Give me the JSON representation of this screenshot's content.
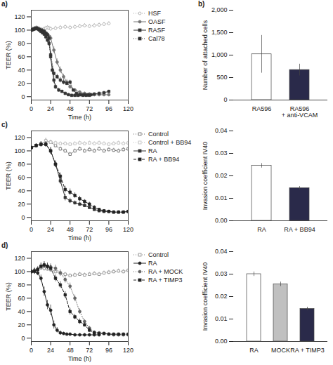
{
  "chart_data": [
    {
      "type": "line",
      "title": "a)",
      "xlabel": "Time (h)",
      "ylabel": "TEER (%)",
      "xlim": [
        0,
        120
      ],
      "ylim": [
        -5,
        130
      ],
      "xticks": [
        0,
        24,
        48,
        72,
        96,
        120
      ],
      "yticks": [
        0,
        20,
        40,
        60,
        80,
        100,
        120
      ],
      "grid": false,
      "legend": "upper right",
      "series": [
        {
          "name": "HSF",
          "color": "#aaaaaa",
          "marker": "open_circle",
          "line_style": "dotted",
          "x": [
            0,
            2,
            4,
            6,
            8,
            10,
            12,
            14,
            16,
            18,
            20,
            22,
            24,
            30,
            36,
            42,
            48,
            54,
            60,
            66,
            72,
            78,
            84,
            90,
            96
          ],
          "values": [
            100,
            101,
            102,
            103,
            103,
            102,
            101,
            100,
            102,
            103,
            104,
            103,
            102,
            103,
            104,
            105,
            104,
            105,
            106,
            107,
            106,
            107,
            108,
            109,
            110
          ],
          "errors": [
            3,
            3,
            3,
            3,
            3,
            3,
            3,
            3,
            3,
            3,
            3,
            3,
            3,
            3,
            3,
            3,
            3,
            3,
            3,
            3,
            3,
            3,
            3,
            3,
            3
          ]
        },
        {
          "name": "OASF",
          "color": "#777777",
          "marker": "circle",
          "line_style": "solid",
          "x": [
            0,
            2,
            4,
            6,
            8,
            10,
            12,
            14,
            16,
            18,
            20,
            22,
            24,
            28,
            32,
            36,
            40,
            44,
            48,
            54,
            60,
            66,
            72,
            78,
            84,
            90,
            96
          ],
          "values": [
            100,
            101,
            102,
            103,
            102,
            101,
            100,
            99,
            98,
            96,
            94,
            91,
            88,
            70,
            52,
            40,
            30,
            22,
            15,
            10,
            7,
            5,
            4,
            3,
            3,
            3,
            3
          ],
          "errors": [
            3,
            3,
            3,
            3,
            3,
            3,
            3,
            3,
            3,
            3,
            3,
            3,
            4,
            5,
            5,
            5,
            4,
            4,
            3,
            2,
            2,
            2,
            2,
            2,
            2,
            2,
            2
          ]
        },
        {
          "name": "RASF",
          "color": "#333333",
          "marker": "square",
          "line_style": "solid",
          "x": [
            0,
            2,
            4,
            6,
            8,
            10,
            12,
            14,
            16,
            18,
            20,
            22,
            24,
            26,
            28,
            30,
            34,
            38,
            42,
            46,
            50,
            54,
            58,
            62,
            66,
            70,
            74,
            78,
            84,
            90,
            96
          ],
          "values": [
            100,
            101,
            102,
            103,
            102,
            101,
            100,
            99,
            98,
            95,
            93,
            88,
            60,
            40,
            25,
            15,
            10,
            8,
            5,
            3,
            2,
            2,
            2,
            3,
            3,
            3,
            3,
            4,
            5,
            6,
            8
          ],
          "errors": [
            3,
            3,
            3,
            3,
            3,
            3,
            3,
            3,
            3,
            3,
            3,
            3,
            6,
            6,
            5,
            4,
            3,
            2,
            2,
            2,
            2,
            2,
            2,
            2,
            2,
            2,
            2,
            2,
            2,
            2,
            2
          ]
        },
        {
          "name": "Cal78",
          "color": "#333333",
          "marker": "square",
          "line_style": "dotted",
          "x": [
            0,
            2,
            4,
            6,
            8,
            10,
            12,
            14,
            16,
            18,
            20,
            22,
            24,
            28,
            32,
            36,
            40,
            44,
            48,
            52,
            56,
            60,
            64,
            68,
            72
          ],
          "values": [
            100,
            101,
            102,
            103,
            102,
            100,
            98,
            96,
            94,
            90,
            85,
            80,
            63,
            35,
            30,
            25,
            22,
            20,
            22,
            10,
            5,
            3,
            2,
            2,
            2
          ],
          "errors": [
            3,
            3,
            3,
            3,
            3,
            3,
            3,
            3,
            3,
            4,
            4,
            4,
            6,
            5,
            4,
            4,
            4,
            3,
            3,
            2,
            2,
            2,
            2,
            2,
            2
          ]
        }
      ]
    },
    {
      "type": "bar",
      "title": "b)",
      "ylabel": "Number of attached cells",
      "ylim": [
        0,
        2000
      ],
      "yticks": [
        0,
        500,
        {
          "value": 1000,
          "label": "1,000"
        },
        {
          "value": 1500,
          "label": "1,500"
        },
        {
          "value": 2000,
          "label": "2,000"
        }
      ],
      "grid": false,
      "categories": [
        "RA596",
        "RA596\n+ anti-VCAM"
      ],
      "values": [
        1020,
        670
      ],
      "errors": [
        420,
        130
      ],
      "colors": [
        "#ffffff",
        "#2a2a4a"
      ]
    },
    {
      "type": "line",
      "title": "c)",
      "xlabel": "Time (h)",
      "ylabel": "TEER (%)",
      "xlim": [
        0,
        120
      ],
      "ylim": [
        -5,
        130
      ],
      "xticks": [
        0,
        24,
        48,
        72,
        96,
        120
      ],
      "yticks": [
        0,
        20,
        40,
        60,
        80,
        100,
        120
      ],
      "grid": false,
      "legend": "upper right",
      "series": [
        {
          "name": "Control",
          "color": "#666666",
          "marker": "open_square",
          "line_style": "dotted",
          "x": [
            0,
            6,
            12,
            18,
            24,
            30,
            36,
            42,
            48,
            54,
            60,
            66,
            72,
            78,
            84,
            90,
            96,
            102,
            108,
            114,
            120
          ],
          "values": [
            105,
            108,
            110,
            115,
            113,
            108,
            103,
            100,
            95,
            100,
            103,
            100,
            102,
            100,
            103,
            100,
            102,
            101,
            100,
            102,
            103
          ],
          "errors": [
            3,
            3,
            3,
            4,
            3,
            3,
            3,
            3,
            3,
            3,
            3,
            3,
            3,
            3,
            3,
            3,
            3,
            3,
            3,
            3,
            3
          ]
        },
        {
          "name": "Control + BB94",
          "color": "#bbbbbb",
          "marker": "open_square",
          "line_style": "dotted",
          "x": [
            0,
            6,
            12,
            18,
            24,
            30,
            36,
            42,
            48,
            54,
            60,
            66,
            72,
            78,
            84,
            90,
            96,
            102,
            108,
            114,
            120
          ],
          "values": [
            105,
            108,
            110,
            115,
            113,
            112,
            111,
            111,
            110,
            111,
            112,
            111,
            112,
            111,
            112,
            111,
            110,
            111,
            112,
            111,
            112
          ],
          "errors": [
            3,
            3,
            3,
            3,
            3,
            3,
            3,
            3,
            3,
            3,
            3,
            3,
            3,
            3,
            3,
            3,
            3,
            3,
            3,
            3,
            3
          ]
        },
        {
          "name": "RA",
          "color": "#333333",
          "marker": "square",
          "line_style": "solid",
          "x": [
            0,
            6,
            12,
            18,
            24,
            30,
            36,
            42,
            48,
            54,
            60,
            66,
            72,
            78,
            84,
            90,
            96,
            102,
            108,
            114,
            120
          ],
          "values": [
            105,
            108,
            110,
            110,
            100,
            80,
            55,
            30,
            25,
            22,
            20,
            18,
            15,
            12,
            10,
            9,
            9,
            8,
            8,
            8,
            9
          ],
          "errors": [
            3,
            3,
            4,
            4,
            5,
            5,
            5,
            5,
            4,
            3,
            3,
            3,
            2,
            2,
            2,
            2,
            2,
            2,
            2,
            2,
            2
          ]
        },
        {
          "name": "RA + BB94",
          "color": "#222222",
          "marker": "square",
          "line_style": "dashed",
          "x": [
            0,
            6,
            12,
            18,
            24,
            30,
            36,
            42,
            48,
            54,
            60,
            66,
            72,
            78,
            84,
            90,
            96,
            102,
            108,
            114,
            120
          ],
          "values": [
            105,
            108,
            110,
            110,
            100,
            80,
            62,
            42,
            38,
            33,
            28,
            24,
            20,
            15,
            12,
            10,
            9,
            8,
            8,
            8,
            9
          ],
          "errors": [
            3,
            3,
            4,
            4,
            5,
            5,
            5,
            5,
            5,
            4,
            4,
            3,
            3,
            3,
            2,
            2,
            2,
            2,
            2,
            2,
            2
          ]
        }
      ]
    },
    {
      "type": "bar",
      "ylabel": "Invasion coefficient IV40",
      "ylim": [
        0,
        0.04
      ],
      "yticks": [
        {
          "value": 0,
          "label": "0.00"
        },
        0.01,
        0.02,
        0.03,
        0.04
      ],
      "grid": false,
      "categories": [
        "RA",
        "RA + BB94"
      ],
      "values": [
        0.0245,
        0.0145
      ],
      "errors": [
        0.001,
        0.0008
      ],
      "colors": [
        "#ffffff",
        "#2a2a4a"
      ]
    },
    {
      "type": "line",
      "title": "d)",
      "xlabel": "Time (h)",
      "ylabel": "TEER (%)",
      "xlim": [
        0,
        120
      ],
      "ylim": [
        -5,
        130
      ],
      "xticks": [
        0,
        24,
        48,
        72,
        96,
        120
      ],
      "yticks": [
        0,
        20,
        40,
        60,
        80,
        100,
        120
      ],
      "grid": false,
      "legend": "upper right",
      "series": [
        {
          "name": "Control",
          "color": "#888888",
          "marker": "open_square",
          "line_style": "dotted",
          "x": [
            0,
            4,
            8,
            12,
            16,
            20,
            24,
            30,
            36,
            42,
            48,
            54,
            60,
            66,
            72,
            78,
            84,
            90,
            96,
            102,
            108,
            114,
            120
          ],
          "values": [
            100,
            102,
            104,
            106,
            105,
            104,
            103,
            100,
            98,
            96,
            94,
            95,
            96,
            95,
            96,
            97,
            96,
            98,
            99,
            100,
            101,
            100,
            102
          ],
          "errors": [
            4,
            4,
            4,
            4,
            4,
            3,
            3,
            3,
            3,
            3,
            3,
            3,
            3,
            3,
            3,
            3,
            3,
            3,
            3,
            3,
            3,
            3,
            3
          ]
        },
        {
          "name": "RA",
          "color": "#222222",
          "marker": "circle",
          "line_style": "solid",
          "x": [
            0,
            4,
            8,
            12,
            16,
            20,
            24,
            28,
            32,
            36,
            40,
            44,
            48,
            54,
            60,
            66,
            72,
            78,
            84
          ],
          "values": [
            100,
            100,
            98,
            90,
            70,
            50,
            42,
            20,
            12,
            8,
            7,
            6,
            6,
            5,
            5,
            5,
            5,
            5,
            5
          ],
          "errors": [
            4,
            4,
            4,
            5,
            7,
            7,
            8,
            6,
            4,
            3,
            2,
            2,
            2,
            2,
            2,
            2,
            2,
            2,
            2
          ]
        },
        {
          "name": "RA + MOCK",
          "color": "#666666",
          "marker": "circle",
          "line_style": "dotted",
          "x": [
            0,
            4,
            8,
            12,
            16,
            20,
            24,
            30,
            36,
            42,
            48,
            54,
            60,
            66,
            72,
            78,
            84,
            90,
            96,
            102,
            108,
            114,
            120
          ],
          "values": [
            100,
            101,
            103,
            108,
            110,
            108,
            107,
            105,
            98,
            88,
            78,
            60,
            40,
            25,
            15,
            9,
            8,
            7,
            6,
            5,
            5,
            5,
            5
          ],
          "errors": [
            4,
            4,
            4,
            5,
            5,
            5,
            5,
            5,
            5,
            5,
            5,
            5,
            4,
            3,
            3,
            2,
            2,
            2,
            2,
            2,
            2,
            2,
            2
          ]
        },
        {
          "name": "RA + TIMP3",
          "color": "#222222",
          "marker": "square",
          "line_style": "dashed",
          "x": [
            0,
            4,
            8,
            12,
            16,
            20,
            24,
            30,
            36,
            42,
            48,
            54,
            60,
            66,
            72,
            78,
            84,
            90,
            96,
            102,
            108,
            114,
            120
          ],
          "values": [
            100,
            101,
            103,
            108,
            110,
            108,
            105,
            90,
            80,
            65,
            40,
            32,
            25,
            20,
            12,
            8,
            7,
            7,
            6,
            6,
            6,
            6,
            6
          ],
          "errors": [
            4,
            4,
            4,
            5,
            5,
            5,
            5,
            5,
            5,
            5,
            5,
            4,
            4,
            3,
            3,
            2,
            2,
            2,
            2,
            2,
            2,
            2,
            2
          ]
        }
      ]
    },
    {
      "type": "bar",
      "ylabel": "Invasion coefficient IV40",
      "ylim": [
        0,
        0.04
      ],
      "yticks": [
        {
          "value": 0,
          "label": "0.00"
        },
        0.01,
        0.02,
        0.03,
        0.04
      ],
      "grid": false,
      "categories": [
        "RA",
        "MOCK",
        "RA + TIMP3"
      ],
      "values": [
        0.03,
        0.0255,
        0.0145
      ],
      "errors": [
        0.001,
        0.001,
        0.0008
      ],
      "colors": [
        "#ffffff",
        "#c0c0c0",
        "#2a2a4a"
      ]
    }
  ]
}
